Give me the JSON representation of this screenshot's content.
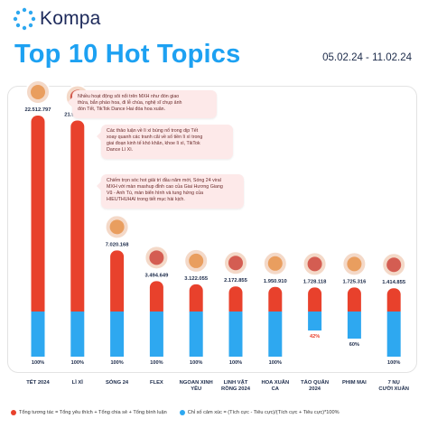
{
  "brand": {
    "name": "Kompa"
  },
  "header": {
    "title": "Top 10 Hot Topics",
    "date_range": "05.02.24 - 11.02.24"
  },
  "colors": {
    "engagement": "#e8412c",
    "sentiment": "#2ea8f0",
    "title": "#1da1f2",
    "negative_label": "#e8412c"
  },
  "callouts": [
    {
      "topic": "TẾT 2024",
      "lines": [
        "Nhiều hoạt động sôi nổi trên MXH như đón giao",
        "thừa, bắn pháo hoa, đi lễ chùa, nghệ sĩ chụp ảnh",
        "đón Tết, TikTok Dance Hai đóa hoa xuân."
      ]
    },
    {
      "topic": "LÌ XÌ",
      "lines": [
        "Các thảo luận về lì xì bùng nổ trong dịp Tết",
        "xoay quanh các tranh cãi về số tiền lì xì trong",
        "giai đoạn kinh tế khó khăn, khoe lì xì, TikTok",
        "Dance Lì Xì."
      ]
    },
    {
      "topic": "SÓNG 24",
      "lines": [
        "Chiếm trọn sóc hot giải trí đầu năm mới, Sóng 24 viral",
        "MXH với màn mashup đỉnh cao của Giai Hương Giang",
        "Vũ - Anh Tú, màn biển hình và tung hứng của",
        "HIEUTHUHAI trong tiết mục hài kịch."
      ]
    }
  ],
  "chart_data": {
    "type": "bar",
    "categories": [
      "TẾT 2024",
      "LÌ XÌ",
      "SÓNG 24",
      "FLEX",
      "NGOAN XINH YÊU",
      "LINH VẬT RỒNG 2024",
      "HOA XUÂN CA",
      "TÁO QUÂN 2024",
      "PHIM MAI",
      "7 NỤ CƯỜI XUÂN"
    ],
    "series": [
      {
        "name": "Tổng tương tác = Tổng yêu thích + Tổng chia sẻ + Tổng bình luận",
        "values": [
          22512797,
          21947438,
          7020168,
          3494649,
          3122055,
          2172855,
          1950910,
          1728118,
          1725316,
          1414855
        ]
      },
      {
        "name": "Chỉ số cảm xúc = (Tích cực - Tiêu cực)/(Tích cực + Tiêu cực)*100%",
        "values": [
          100,
          100,
          100,
          100,
          100,
          100,
          100,
          -42,
          60,
          100
        ]
      }
    ],
    "value_labels": [
      "22.512.797",
      "21.947.438",
      "7.020.168",
      "3.494.649",
      "3.122.055",
      "2.172.855",
      "1.950.910",
      "1.728.118",
      "1.725.316",
      "1.414.855"
    ],
    "sentiment_labels": [
      "100%",
      "100%",
      "100%",
      "100%",
      "100%",
      "100%",
      "100%",
      "42%",
      "60%",
      "100%"
    ]
  }
}
